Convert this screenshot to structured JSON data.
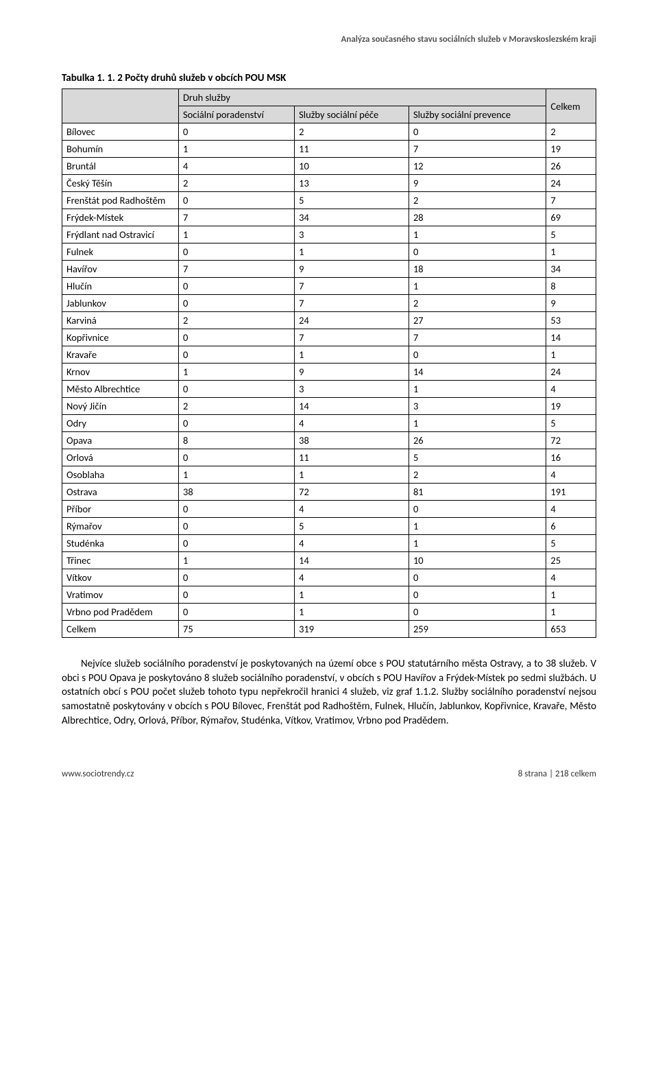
{
  "header": {
    "doc_title_right": "Analýza současného stavu sociálních služeb v Moravskoslezském kraji"
  },
  "table": {
    "caption": "Tabulka 1. 1. 2  Počty druhů služeb v obcích POU MSK",
    "super_header": "Druh služby",
    "columns": {
      "c1": "Sociální poradenství",
      "c2": "Služby sociální péče",
      "c3": "Služby sociální prevence",
      "c4": "Celkem"
    },
    "rows": [
      {
        "name": "Bílovec",
        "v": [
          "0",
          "2",
          "0",
          "2"
        ]
      },
      {
        "name": "Bohumín",
        "v": [
          "1",
          "11",
          "7",
          "19"
        ]
      },
      {
        "name": "Bruntál",
        "v": [
          "4",
          "10",
          "12",
          "26"
        ]
      },
      {
        "name": "Český Těšín",
        "v": [
          "2",
          "13",
          "9",
          "24"
        ]
      },
      {
        "name": "Frenštát pod Radhoštěm",
        "v": [
          "0",
          "5",
          "2",
          "7"
        ]
      },
      {
        "name": "Frýdek-Místek",
        "v": [
          "7",
          "34",
          "28",
          "69"
        ]
      },
      {
        "name": "Frýdlant nad Ostravicí",
        "v": [
          "1",
          "3",
          "1",
          "5"
        ]
      },
      {
        "name": "Fulnek",
        "v": [
          "0",
          "1",
          "0",
          "1"
        ]
      },
      {
        "name": "Havířov",
        "v": [
          "7",
          "9",
          "18",
          "34"
        ]
      },
      {
        "name": "Hlučín",
        "v": [
          "0",
          "7",
          "1",
          "8"
        ]
      },
      {
        "name": "Jablunkov",
        "v": [
          "0",
          "7",
          "2",
          "9"
        ]
      },
      {
        "name": "Karviná",
        "v": [
          "2",
          "24",
          "27",
          "53"
        ]
      },
      {
        "name": "Kopřivnice",
        "v": [
          "0",
          "7",
          "7",
          "14"
        ]
      },
      {
        "name": "Kravaře",
        "v": [
          "0",
          "1",
          "0",
          "1"
        ]
      },
      {
        "name": "Krnov",
        "v": [
          "1",
          "9",
          "14",
          "24"
        ]
      },
      {
        "name": "Město Albrechtice",
        "v": [
          "0",
          "3",
          "1",
          "4"
        ]
      },
      {
        "name": "Nový Jičín",
        "v": [
          "2",
          "14",
          "3",
          "19"
        ]
      },
      {
        "name": "Odry",
        "v": [
          "0",
          "4",
          "1",
          "5"
        ]
      },
      {
        "name": "Opava",
        "v": [
          "8",
          "38",
          "26",
          "72"
        ]
      },
      {
        "name": "Orlová",
        "v": [
          "0",
          "11",
          "5",
          "16"
        ]
      },
      {
        "name": "Osoblaha",
        "v": [
          "1",
          "1",
          "2",
          "4"
        ]
      },
      {
        "name": "Ostrava",
        "v": [
          "38",
          "72",
          "81",
          "191"
        ]
      },
      {
        "name": "Příbor",
        "v": [
          "0",
          "4",
          "0",
          "4"
        ]
      },
      {
        "name": "Rýmařov",
        "v": [
          "0",
          "5",
          "1",
          "6"
        ]
      },
      {
        "name": "Studénka",
        "v": [
          "0",
          "4",
          "1",
          "5"
        ]
      },
      {
        "name": "Třinec",
        "v": [
          "1",
          "14",
          "10",
          "25"
        ]
      },
      {
        "name": "Vítkov",
        "v": [
          "0",
          "4",
          "0",
          "4"
        ]
      },
      {
        "name": "Vratimov",
        "v": [
          "0",
          "1",
          "0",
          "1"
        ]
      },
      {
        "name": "Vrbno pod Pradědem",
        "v": [
          "0",
          "1",
          "0",
          "1"
        ]
      },
      {
        "name": "Celkem",
        "v": [
          "75",
          "319",
          "259",
          "653"
        ]
      }
    ]
  },
  "paragraph": {
    "text": "Nejvíce služeb sociálního poradenství je poskytovaných na území obce s POU statutárního města Ostravy, a to 38  služeb. V obci s POU  Opava je poskytováno 8 služeb sociálního poradenství, v obcích s POU Havířov a Frýdek-Místek po sedmi službách. U ostatních obcí s POU počet služeb tohoto typu nepřekročil hranici 4 služeb, viz graf 1.1.2. Služby sociálního poradenství nejsou samostatně poskytovány v obcích s POU Bílovec, Frenštát pod Radhoštěm, Fulnek, Hlučín, Jablunkov, Kopřivnice, Kravaře, Město Albrechtice, Odry, Orlová, Příbor, Rýmařov, Studénka, Vítkov, Vratimov, Vrbno pod Pradědem."
  },
  "footer": {
    "left": "www.sociotrendy.cz",
    "right": "8 strana | 218 celkem"
  },
  "style": {
    "header_bg": "#d9d9d9",
    "border_color": "#000000",
    "text_color": "#000000",
    "muted_color": "#555555"
  }
}
